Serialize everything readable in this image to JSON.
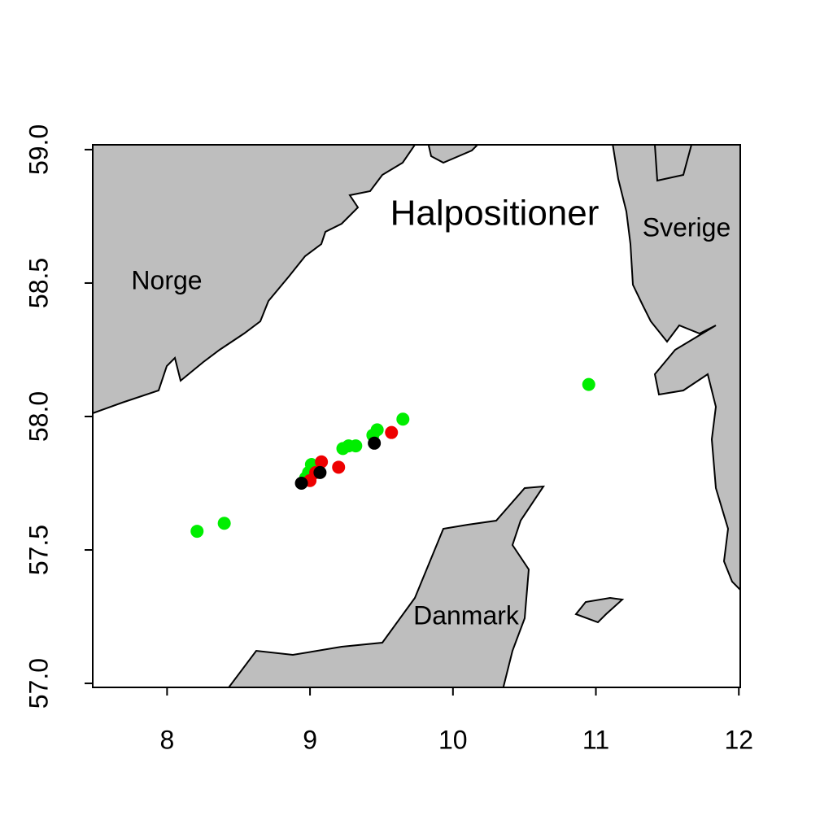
{
  "chart_data": {
    "type": "scatter",
    "title": "Halpositioner",
    "annotations": [
      "Norge",
      "Sverige",
      "Danmark"
    ],
    "xlim": [
      7.48,
      12.01
    ],
    "ylim": [
      56.985,
      59.018
    ],
    "xticks": [
      8,
      9,
      10,
      11,
      12
    ],
    "yticks": [
      {
        "value": 57,
        "label": "57.0"
      },
      {
        "value": 57.5,
        "label": "57.5"
      },
      {
        "value": 58,
        "label": "58.0"
      },
      {
        "value": 58.5,
        "label": "58.5"
      },
      {
        "value": 59,
        "label": "59.0"
      }
    ],
    "series": [
      {
        "color": "#00ee00",
        "x": [
          8.21,
          8.4,
          10.95,
          9.65,
          9.47,
          9.44,
          9.32,
          9.27,
          9.23,
          9.01,
          8.99,
          8.97
        ],
        "y": [
          57.57,
          57.6,
          58.12,
          57.99,
          57.95,
          57.93,
          57.89,
          57.89,
          57.88,
          57.82,
          57.79,
          57.77
        ]
      },
      {
        "color": "#ee0000",
        "x": [
          9.57,
          9.2,
          9.08,
          9.04,
          9.0
        ],
        "y": [
          57.94,
          57.81,
          57.83,
          57.79,
          57.76
        ]
      },
      {
        "color": "#000000",
        "x": [
          9.45,
          9.07,
          8.94
        ],
        "y": [
          57.9,
          57.79,
          57.75
        ]
      }
    ]
  }
}
